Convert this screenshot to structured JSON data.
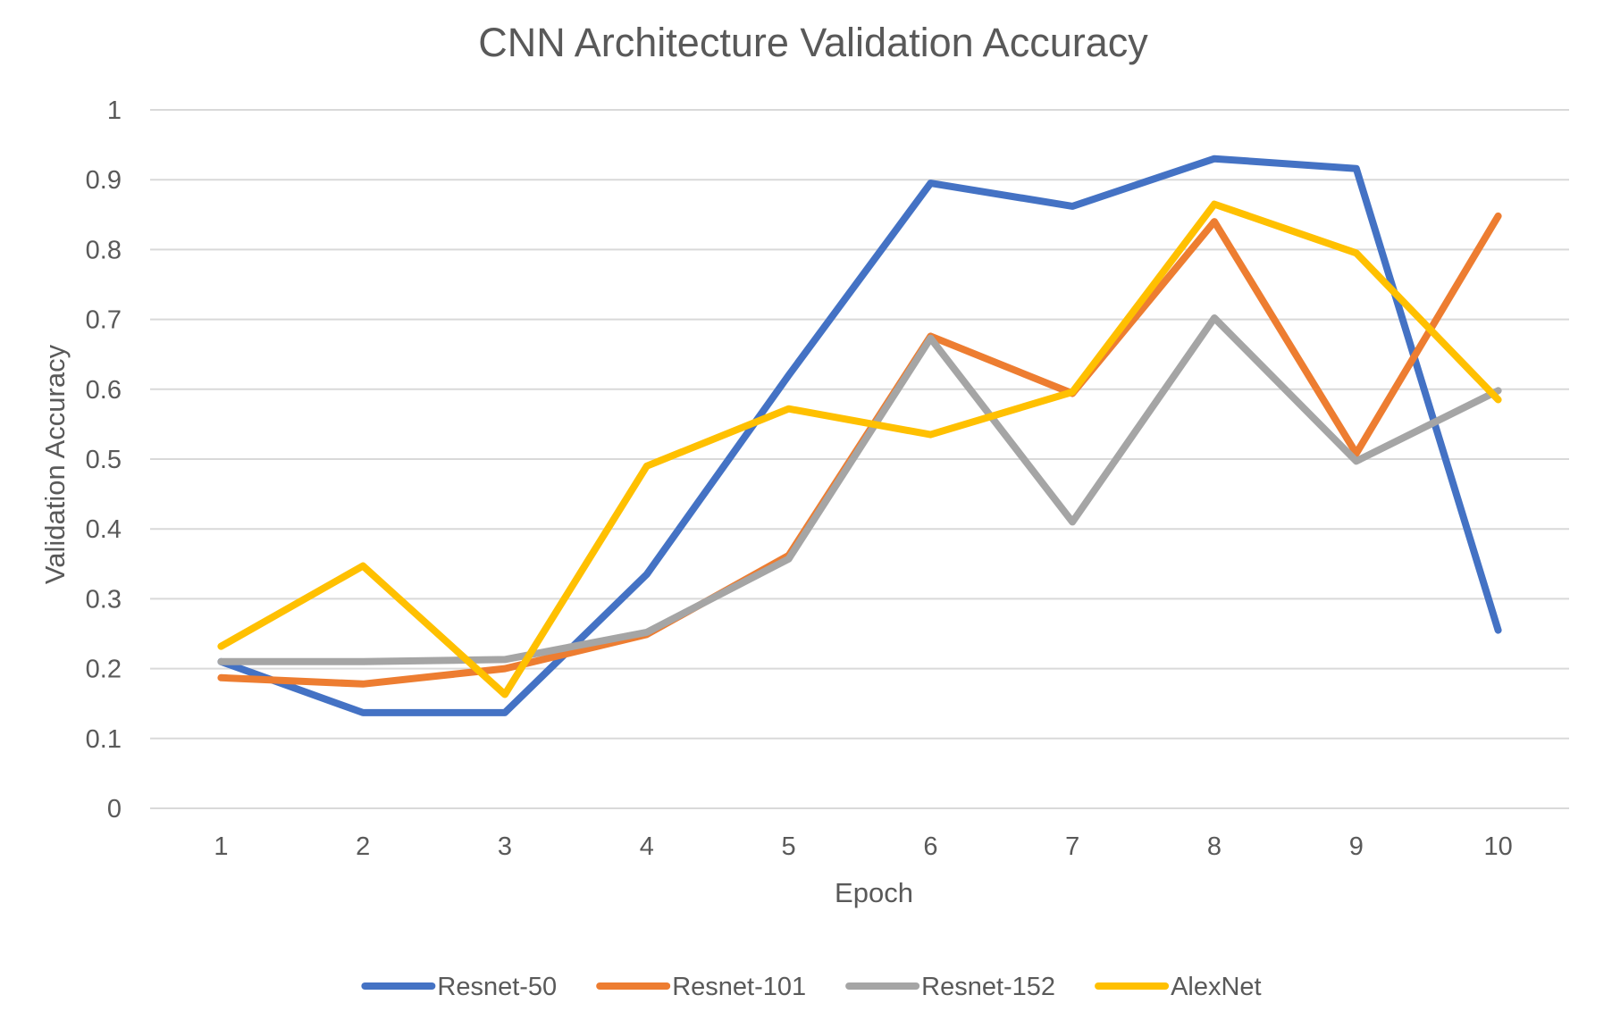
{
  "chart_data": {
    "type": "line",
    "title": "CNN Architecture Validation Accuracy",
    "xlabel": "Epoch",
    "ylabel": "Validation Accuracy",
    "categories": [
      "1",
      "2",
      "3",
      "4",
      "5",
      "6",
      "7",
      "8",
      "9",
      "10"
    ],
    "y_ticks": [
      "0",
      "0.1",
      "0.2",
      "0.3",
      "0.4",
      "0.5",
      "0.6",
      "0.7",
      "0.8",
      "0.9",
      "1"
    ],
    "ylim": [
      0,
      1
    ],
    "grid": true,
    "legend_position": "bottom",
    "series": [
      {
        "name": "Resnet-50",
        "color": "#4472C4",
        "values": [
          0.21,
          0.137,
          0.137,
          0.335,
          0.62,
          0.895,
          0.862,
          0.93,
          0.916,
          0.255
        ]
      },
      {
        "name": "Resnet-101",
        "color": "#ED7D31",
        "values": [
          0.187,
          0.178,
          0.2,
          0.249,
          0.362,
          0.676,
          0.594,
          0.84,
          0.508,
          0.848
        ]
      },
      {
        "name": "Resnet-152",
        "color": "#A5A5A5",
        "values": [
          0.21,
          0.21,
          0.213,
          0.252,
          0.357,
          0.673,
          0.41,
          0.702,
          0.497,
          0.598
        ]
      },
      {
        "name": "AlexNet",
        "color": "#FFC000",
        "values": [
          0.232,
          0.347,
          0.163,
          0.49,
          0.572,
          0.535,
          0.596,
          0.865,
          0.795,
          0.585
        ]
      }
    ]
  }
}
